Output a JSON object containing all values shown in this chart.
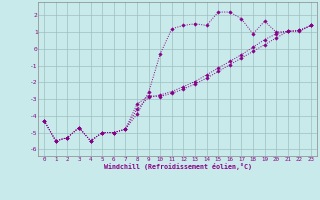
{
  "xlabel": "Windchill (Refroidissement éolien,°C)",
  "background_color": "#c8eaea",
  "grid_color": "#9fbfbf",
  "line_color": "#880088",
  "xlim": [
    -0.5,
    23.5
  ],
  "ylim": [
    -6.4,
    2.8
  ],
  "xticks": [
    0,
    1,
    2,
    3,
    4,
    5,
    6,
    7,
    8,
    9,
    10,
    11,
    12,
    13,
    14,
    15,
    16,
    17,
    18,
    19,
    20,
    21,
    22,
    23
  ],
  "yticks": [
    -6,
    -5,
    -4,
    -3,
    -2,
    -1,
    0,
    1,
    2
  ],
  "series1_x": [
    0,
    1,
    2,
    3,
    4,
    5,
    6,
    7,
    8,
    9,
    10,
    11,
    12,
    13,
    14,
    15,
    16,
    17,
    18,
    19,
    20,
    21,
    22,
    23
  ],
  "series1_y": [
    -4.3,
    -5.5,
    -5.3,
    -4.7,
    -5.5,
    -5.0,
    -5.0,
    -4.8,
    -3.9,
    -2.6,
    -0.3,
    1.2,
    1.4,
    1.5,
    1.4,
    2.2,
    2.2,
    1.8,
    0.9,
    1.65,
    1.0,
    1.05,
    1.05,
    1.4
  ],
  "series2_x": [
    0,
    1,
    2,
    3,
    4,
    5,
    6,
    7,
    8,
    9,
    10,
    11,
    12,
    13,
    14,
    15,
    16,
    17,
    18,
    19,
    20,
    21,
    22,
    23
  ],
  "series2_y": [
    -4.3,
    -5.5,
    -5.3,
    -4.7,
    -5.5,
    -5.0,
    -5.0,
    -4.8,
    -3.3,
    -2.8,
    -2.85,
    -2.65,
    -2.4,
    -2.1,
    -1.75,
    -1.35,
    -0.95,
    -0.55,
    -0.15,
    0.25,
    0.65,
    1.05,
    1.1,
    1.4
  ],
  "series3_x": [
    0,
    1,
    2,
    3,
    4,
    5,
    6,
    7,
    8,
    9,
    10,
    11,
    12,
    13,
    14,
    15,
    16,
    17,
    18,
    19,
    20,
    21,
    22,
    23
  ],
  "series3_y": [
    -4.3,
    -5.5,
    -5.3,
    -4.7,
    -5.5,
    -5.0,
    -5.0,
    -4.8,
    -3.6,
    -2.9,
    -2.75,
    -2.55,
    -2.25,
    -1.95,
    -1.55,
    -1.15,
    -0.75,
    -0.35,
    0.1,
    0.55,
    0.9,
    1.05,
    1.1,
    1.4
  ]
}
